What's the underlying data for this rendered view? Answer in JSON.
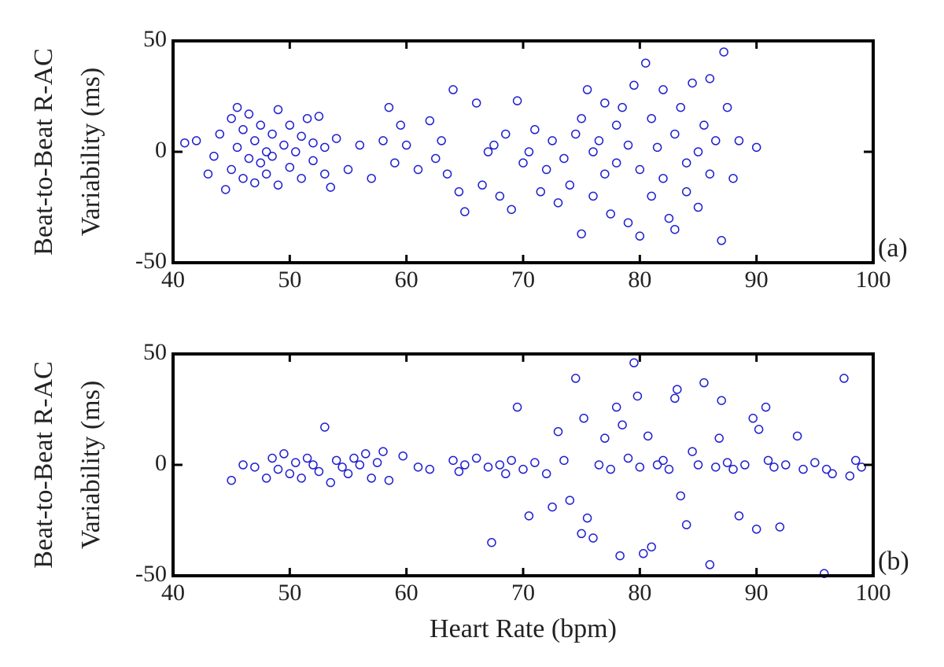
{
  "chart_data": [
    {
      "type": "scatter",
      "ylabel": [
        "Beat-to-Beat R-AC",
        "Variability (ms)"
      ],
      "panel_label": "(a)",
      "color": "#2020d0",
      "x": [
        41,
        42,
        43,
        43.5,
        44,
        44.5,
        45,
        45,
        45.5,
        45.5,
        46,
        46,
        46.5,
        46.5,
        47,
        47,
        47.5,
        47.5,
        48,
        48,
        48.5,
        48.5,
        49,
        49,
        49.5,
        50,
        50,
        50.5,
        51,
        51,
        51.5,
        52,
        52,
        52.5,
        53,
        53,
        53.5,
        54,
        55,
        56,
        57,
        58,
        58.5,
        59,
        59.5,
        60,
        61,
        62,
        62.5,
        63,
        63.5,
        64,
        64.5,
        65,
        66,
        66.5,
        67,
        67.5,
        68,
        68.5,
        69,
        69.5,
        70,
        70.5,
        71,
        71.5,
        72,
        72.5,
        73,
        73.5,
        74,
        74.5,
        75,
        75,
        75.5,
        76,
        76,
        76.5,
        77,
        77,
        77.5,
        78,
        78,
        78.5,
        79,
        79,
        79.5,
        80,
        80,
        80.5,
        81,
        81,
        81.5,
        82,
        82,
        82.5,
        83,
        83,
        83.5,
        84,
        84,
        84.5,
        85,
        85,
        85.5,
        86,
        86,
        86.5,
        87,
        87.2,
        87.5,
        88,
        88.5,
        90
      ],
      "values": [
        4,
        5,
        -10,
        -2,
        8,
        -17,
        15,
        -8,
        20,
        2,
        -12,
        10,
        -3,
        17,
        5,
        -14,
        -5,
        12,
        0,
        -10,
        8,
        -2,
        19,
        -15,
        3,
        -7,
        12,
        0,
        -12,
        7,
        15,
        -4,
        4,
        16,
        -10,
        2,
        -16,
        6,
        -8,
        3,
        -12,
        5,
        20,
        -5,
        12,
        3,
        -8,
        14,
        -3,
        5,
        -10,
        28,
        -18,
        -27,
        22,
        -15,
        0,
        3,
        -20,
        8,
        -26,
        23,
        -5,
        0,
        10,
        -18,
        -8,
        5,
        -23,
        -3,
        -15,
        8,
        -37,
        15,
        28,
        -20,
        0,
        5,
        -10,
        22,
        -28,
        12,
        -5,
        20,
        -32,
        3,
        30,
        -38,
        -8,
        40,
        15,
        -20,
        2,
        -12,
        28,
        -30,
        8,
        -35,
        20,
        -5,
        -18,
        31,
        0,
        -25,
        12,
        -10,
        33,
        5,
        -40,
        45,
        20,
        -12,
        5,
        2
      ],
      "xlim": [
        40,
        100
      ],
      "ylim": [
        -50,
        50
      ],
      "xticks": [
        40,
        50,
        60,
        70,
        80,
        90,
        100
      ],
      "yticks": [
        -50,
        0,
        50
      ]
    },
    {
      "type": "scatter",
      "ylabel": [
        "Beat-to-Beat R-AC",
        "Variability (ms)"
      ],
      "panel_label": "(b)",
      "xlabel": "Heart Rate (bpm)",
      "color": "#2020d0",
      "x": [
        45,
        46,
        47,
        48,
        48.5,
        49,
        49.5,
        50,
        50.5,
        51,
        51.5,
        52,
        52.5,
        53,
        53.5,
        54,
        54.5,
        55,
        55.5,
        56,
        56.5,
        57,
        57.5,
        58,
        58.5,
        59.7,
        61,
        62,
        64,
        64.5,
        65,
        66,
        67,
        67.3,
        68,
        68.5,
        69,
        69.5,
        70,
        70.5,
        71,
        72,
        72.5,
        73,
        73.5,
        74,
        74.5,
        75,
        75.2,
        75.5,
        76,
        76.5,
        77,
        77.5,
        78,
        78.3,
        78.5,
        79,
        79.5,
        79.8,
        80,
        80.3,
        80.7,
        81,
        81.5,
        82,
        82.5,
        83,
        83.2,
        83.5,
        84,
        84.5,
        85,
        85.5,
        86,
        86.5,
        86.8,
        87,
        87.5,
        88,
        88.5,
        89,
        89.7,
        90,
        90.2,
        90.8,
        91,
        91.5,
        92,
        92.5,
        93.5,
        94,
        95,
        95.8,
        96,
        96.5,
        97.5,
        98,
        98.5,
        99
      ],
      "values": [
        -7,
        0,
        -1,
        -6,
        3,
        -2,
        5,
        -4,
        1,
        -6,
        3,
        0,
        -3,
        17,
        -8,
        2,
        -1,
        -4,
        3,
        0,
        5,
        -6,
        1,
        6,
        -7,
        4,
        -1,
        -2,
        2,
        -3,
        0,
        3,
        -1,
        -35,
        0,
        -4,
        2,
        26,
        -2,
        -23,
        1,
        -4,
        -19,
        15,
        2,
        -16,
        39,
        -31,
        21,
        -24,
        -33,
        0,
        12,
        -2,
        26,
        -41,
        18,
        3,
        46,
        31,
        -1,
        -40,
        13,
        -37,
        0,
        2,
        -2,
        30,
        34,
        -14,
        -27,
        6,
        0,
        37,
        -45,
        -1,
        12,
        29,
        1,
        -2,
        -23,
        0,
        21,
        -29,
        16,
        26,
        2,
        -1,
        -28,
        0,
        13,
        -2,
        1,
        -49,
        -2,
        -4,
        39,
        -5,
        2,
        -1
      ],
      "xlim": [
        40,
        100
      ],
      "ylim": [
        -50,
        50
      ],
      "xticks": [
        40,
        50,
        60,
        70,
        80,
        90,
        100
      ],
      "yticks": [
        -50,
        0,
        50
      ]
    }
  ]
}
